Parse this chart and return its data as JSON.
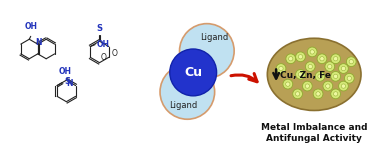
{
  "bg_color": "#ffffff",
  "title": "Metal Imbalance and\nAntifungal Activity",
  "title_fontsize": 6.5,
  "title_fontweight": "bold",
  "ligand_label": "Ligand",
  "cu_label": "Cu",
  "cu_zn_fe_label": "Cu, Zn, Fe",
  "arrow_color": "#cc1100",
  "up_arrow_color": "#111111",
  "cu_circle_color": "#2233cc",
  "cu_circle_edge": "#1122aa",
  "ligand_circle_color": "#b8ddf0",
  "ligand_circle_edge": "#d4905a",
  "fungal_ellipse_fill": "#b8a055",
  "fungal_ellipse_edge": "#8a7030",
  "cell_outer_fill": "#d4e878",
  "cell_outer_edge": "#90aa30",
  "cell_inner_fill": "#eef8a0",
  "mol_color_blue": "#2233bb",
  "mol_color_black": "#222222",
  "ligand_fontsize": 6.0,
  "cu_fontsize": 9,
  "label_fontsize": 6.0,
  "cu_zn_fe_fontsize": 6.5
}
